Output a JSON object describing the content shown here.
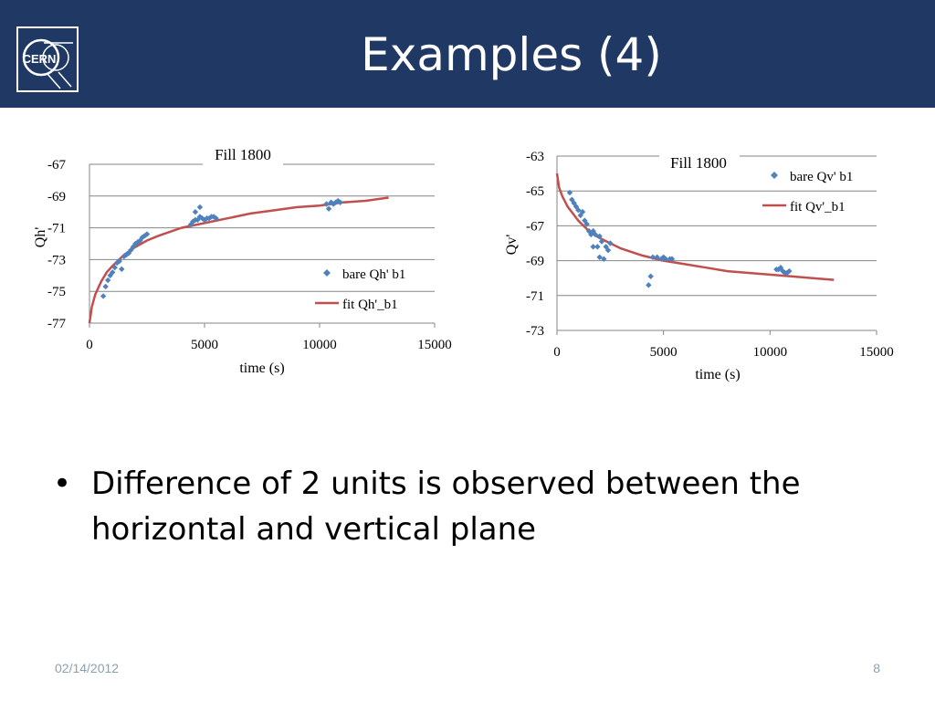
{
  "slide": {
    "title": "Examples (4)",
    "logo_text": "CERN",
    "bullet_symbol": "•",
    "bullet": "Difference of 2 units is observed between the horizontal and vertical plane",
    "date": "02/14/2012",
    "page": "8"
  },
  "chart_data": [
    {
      "type": "scatter",
      "title": "Fill 1800",
      "xlabel": "time (s)",
      "ylabel": "Qh'",
      "xlim": [
        0,
        15000
      ],
      "ylim": [
        -77,
        -67
      ],
      "xticks": [
        "0",
        "5000",
        "10000",
        "15000"
      ],
      "yticks": [
        "-67",
        "-69",
        "-71",
        "-73",
        "-75",
        "-77"
      ],
      "grid": "horizontal",
      "legend": "right",
      "series": [
        {
          "name": "bare Qh' b1",
          "kind": "markers",
          "color": "#4f81bd",
          "points": [
            [
              600,
              -75.3
            ],
            [
              700,
              -74.7
            ],
            [
              800,
              -74.3
            ],
            [
              900,
              -74.0
            ],
            [
              1000,
              -73.8
            ],
            [
              1100,
              -73.5
            ],
            [
              1200,
              -73.2
            ],
            [
              1300,
              -73.1
            ],
            [
              1400,
              -73.6
            ],
            [
              1500,
              -72.8
            ],
            [
              1600,
              -72.7
            ],
            [
              1700,
              -72.6
            ],
            [
              1800,
              -72.4
            ],
            [
              1900,
              -72.2
            ],
            [
              2000,
              -72.0
            ],
            [
              2100,
              -71.9
            ],
            [
              2200,
              -71.8
            ],
            [
              2300,
              -71.6
            ],
            [
              2400,
              -71.5
            ],
            [
              2500,
              -71.4
            ],
            [
              4400,
              -70.8
            ],
            [
              4500,
              -70.6
            ],
            [
              4600,
              -70.5
            ],
            [
              4600,
              -70.0
            ],
            [
              4700,
              -70.5
            ],
            [
              4800,
              -70.3
            ],
            [
              4800,
              -69.7
            ],
            [
              4900,
              -70.4
            ],
            [
              5000,
              -70.5
            ],
            [
              5100,
              -70.4
            ],
            [
              5200,
              -70.4
            ],
            [
              5300,
              -70.3
            ],
            [
              5400,
              -70.3
            ],
            [
              5500,
              -70.4
            ],
            [
              10300,
              -69.5
            ],
            [
              10400,
              -69.8
            ],
            [
              10500,
              -69.4
            ],
            [
              10600,
              -69.5
            ],
            [
              10700,
              -69.4
            ],
            [
              10800,
              -69.3
            ],
            [
              10900,
              -69.4
            ]
          ]
        },
        {
          "name": "fit Qh'_b1",
          "kind": "line",
          "color": "#c0504d",
          "points": [
            [
              0,
              -77.0
            ],
            [
              100,
              -76.0
            ],
            [
              250,
              -75.2
            ],
            [
              500,
              -74.4
            ],
            [
              750,
              -73.8
            ],
            [
              1000,
              -73.4
            ],
            [
              1500,
              -72.7
            ],
            [
              2000,
              -72.2
            ],
            [
              2500,
              -71.8
            ],
            [
              3000,
              -71.5
            ],
            [
              4000,
              -71.0
            ],
            [
              5000,
              -70.7
            ],
            [
              6000,
              -70.4
            ],
            [
              7000,
              -70.1
            ],
            [
              8000,
              -69.9
            ],
            [
              9000,
              -69.7
            ],
            [
              10000,
              -69.6
            ],
            [
              11000,
              -69.4
            ],
            [
              12000,
              -69.3
            ],
            [
              13000,
              -69.1
            ]
          ]
        }
      ]
    },
    {
      "type": "scatter",
      "title": "Fill 1800",
      "xlabel": "time (s)",
      "ylabel": "Qv'",
      "xlim": [
        0,
        15000
      ],
      "ylim": [
        -73,
        -63
      ],
      "xticks": [
        "0",
        "5000",
        "10000",
        "15000"
      ],
      "yticks": [
        "-63",
        "-65",
        "-67",
        "-69",
        "-71",
        "-73"
      ],
      "grid": "horizontal",
      "legend": "top-right",
      "series": [
        {
          "name": "bare Qv' b1",
          "kind": "markers",
          "color": "#4f81bd",
          "points": [
            [
              600,
              -65.1
            ],
            [
              700,
              -65.5
            ],
            [
              800,
              -65.7
            ],
            [
              900,
              -65.9
            ],
            [
              1000,
              -66.1
            ],
            [
              1100,
              -66.4
            ],
            [
              1200,
              -66.2
            ],
            [
              1300,
              -66.7
            ],
            [
              1400,
              -66.9
            ],
            [
              1500,
              -67.3
            ],
            [
              1600,
              -67.5
            ],
            [
              1700,
              -67.3
            ],
            [
              1700,
              -68.2
            ],
            [
              1800,
              -67.5
            ],
            [
              1900,
              -68.2
            ],
            [
              2000,
              -67.6
            ],
            [
              2000,
              -68.8
            ],
            [
              2100,
              -67.9
            ],
            [
              2200,
              -68.9
            ],
            [
              2300,
              -68.2
            ],
            [
              2400,
              -68.4
            ],
            [
              2500,
              -68.0
            ],
            [
              4300,
              -70.4
            ],
            [
              4400,
              -69.9
            ],
            [
              4500,
              -68.8
            ],
            [
              4700,
              -68.8
            ],
            [
              4900,
              -68.9
            ],
            [
              5000,
              -68.8
            ],
            [
              5100,
              -68.9
            ],
            [
              5300,
              -68.9
            ],
            [
              5400,
              -68.9
            ],
            [
              10300,
              -69.5
            ],
            [
              10400,
              -69.5
            ],
            [
              10500,
              -69.4
            ],
            [
              10600,
              -69.6
            ],
            [
              10700,
              -69.7
            ],
            [
              10800,
              -69.7
            ],
            [
              10900,
              -69.6
            ]
          ]
        },
        {
          "name": "fit Qv'_b1",
          "kind": "line",
          "color": "#c0504d",
          "points": [
            [
              0,
              -64.0
            ],
            [
              100,
              -64.8
            ],
            [
              250,
              -65.3
            ],
            [
              500,
              -65.9
            ],
            [
              750,
              -66.3
            ],
            [
              1000,
              -66.7
            ],
            [
              1500,
              -67.3
            ],
            [
              2000,
              -67.7
            ],
            [
              2500,
              -68.0
            ],
            [
              3000,
              -68.3
            ],
            [
              4000,
              -68.7
            ],
            [
              5000,
              -69.0
            ],
            [
              6000,
              -69.2
            ],
            [
              7000,
              -69.4
            ],
            [
              8000,
              -69.6
            ],
            [
              9000,
              -69.7
            ],
            [
              10000,
              -69.8
            ],
            [
              11000,
              -69.9
            ],
            [
              12000,
              -70.0
            ],
            [
              13000,
              -70.1
            ]
          ]
        }
      ]
    }
  ]
}
